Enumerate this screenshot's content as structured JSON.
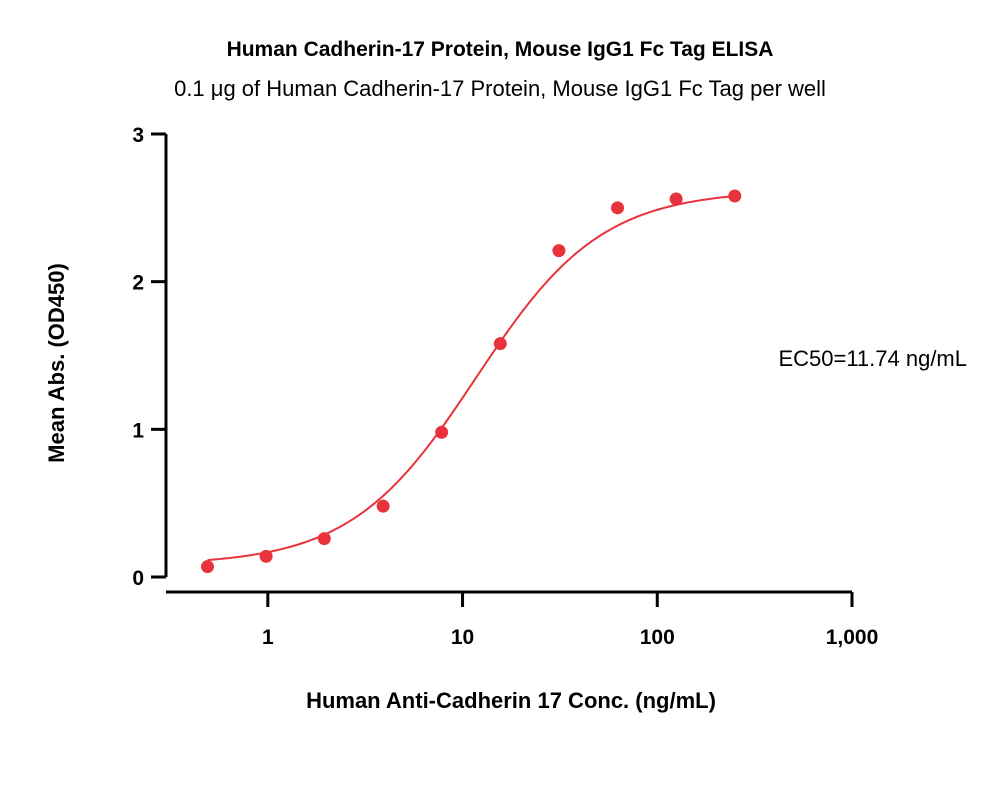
{
  "chart_data": {
    "type": "scatter",
    "title": "Human Cadherin-17 Protein, Mouse IgG1 Fc Tag ELISA",
    "subtitle": "0.1 μg of Human Cadherin-17 Protein, Mouse IgG1 Fc Tag per well",
    "xlabel": "Human Anti-Cadherin 17 Conc. (ng/mL)",
    "ylabel": "Mean Abs. (OD450)",
    "x_scale": "log",
    "xlim": [
      0.3,
      1000
    ],
    "ylim": [
      0,
      3
    ],
    "x_ticks": [
      1,
      10,
      100,
      1000
    ],
    "x_tick_labels": [
      "1",
      "10",
      "100",
      "1,000"
    ],
    "y_ticks": [
      0,
      1,
      2,
      3
    ],
    "y_tick_labels": [
      "0",
      "1",
      "2",
      "3"
    ],
    "grid": false,
    "series": [
      {
        "color": "#e8333c",
        "x": [
          0.49,
          0.98,
          1.95,
          3.91,
          7.81,
          15.63,
          31.25,
          62.5,
          125,
          250
        ],
        "y": [
          0.07,
          0.14,
          0.26,
          0.48,
          0.98,
          1.58,
          2.21,
          2.5,
          2.56,
          2.58
        ]
      }
    ],
    "annotation": "EC50=11.74 ng/mL"
  }
}
